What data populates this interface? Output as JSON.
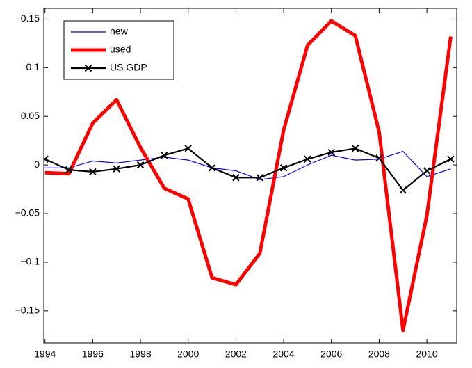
{
  "chart_data": {
    "type": "line",
    "x": [
      1994,
      1995,
      1996,
      1997,
      1998,
      1999,
      2000,
      2001,
      2002,
      2003,
      2004,
      2005,
      2006,
      2007,
      2008,
      2009,
      2010,
      2011
    ],
    "series": [
      {
        "name": "new",
        "color": "#0000ff",
        "line_width": 1.2,
        "marker": null,
        "values": [
          -0.003,
          -0.003,
          0.004,
          0.002,
          0.005,
          0.008,
          0.005,
          -0.003,
          -0.006,
          -0.015,
          -0.012,
          0.0,
          0.01,
          0.005,
          0.006,
          0.014,
          -0.012,
          -0.004
        ]
      },
      {
        "name": "used",
        "color": "#ff0000",
        "line_width": 5,
        "marker": null,
        "values": [
          -0.008,
          -0.009,
          0.043,
          0.067,
          0.018,
          -0.024,
          -0.035,
          -0.116,
          -0.123,
          -0.091,
          0.036,
          0.123,
          0.148,
          0.133,
          0.034,
          -0.17,
          -0.052,
          0.132
        ]
      },
      {
        "name": "US GDP",
        "color": "#000000",
        "line_width": 2.2,
        "marker": "x",
        "values": [
          0.006,
          -0.005,
          -0.007,
          -0.004,
          0.0,
          0.01,
          0.017,
          -0.003,
          -0.013,
          -0.013,
          -0.003,
          0.006,
          0.013,
          0.017,
          0.007,
          -0.026,
          -0.006,
          0.006
        ]
      }
    ],
    "xlim": [
      1993.95,
      2011.25
    ],
    "xticks": [
      1994,
      1996,
      1998,
      2000,
      2002,
      2004,
      2006,
      2008,
      2010
    ],
    "ylim": [
      -0.183,
      0.161
    ],
    "yticks": [
      {
        "value": -0.15,
        "label": "−0.15"
      },
      {
        "value": -0.1,
        "label": "−0.1"
      },
      {
        "value": -0.05,
        "label": "−0.05"
      },
      0,
      0.05,
      0.1,
      0.15
    ],
    "grid": false,
    "legend": "upper-left"
  }
}
